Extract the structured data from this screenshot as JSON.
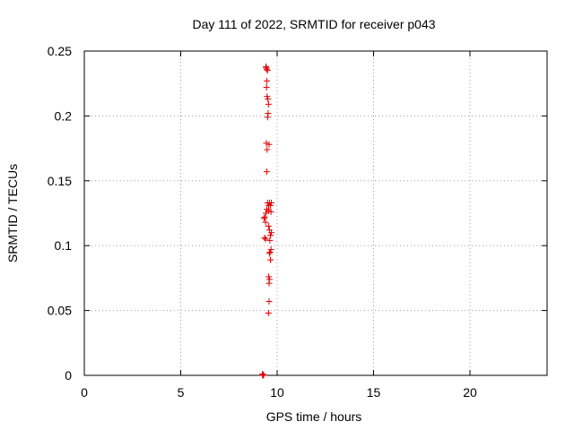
{
  "chart_data": {
    "type": "scatter",
    "title": "Day 111 of 2022, SRMTID for receiver p043",
    "xlabel": "GPS time / hours",
    "ylabel": "SRMTID / TECUs",
    "xlim": [
      0,
      24
    ],
    "ylim": [
      0,
      0.25
    ],
    "xticks": [
      0,
      5,
      10,
      15,
      20
    ],
    "yticks": [
      0,
      0.05,
      0.1,
      0.15,
      0.2,
      0.25
    ],
    "xtick_labels": [
      "0",
      "5",
      "10",
      "15",
      "20"
    ],
    "ytick_labels": [
      "0",
      "0.05",
      "0.1",
      "0.15",
      "0.2",
      "0.25"
    ],
    "grid": true,
    "marker": "+",
    "color": "#e00000",
    "points": [
      {
        "x": 9.42,
        "y": 0.238
      },
      {
        "x": 9.46,
        "y": 0.236
      },
      {
        "x": 9.5,
        "y": 0.235
      },
      {
        "x": 9.44,
        "y": 0.237
      },
      {
        "x": 9.47,
        "y": 0.227
      },
      {
        "x": 9.45,
        "y": 0.222
      },
      {
        "x": 9.48,
        "y": 0.215
      },
      {
        "x": 9.52,
        "y": 0.213
      },
      {
        "x": 9.55,
        "y": 0.209
      },
      {
        "x": 9.53,
        "y": 0.202
      },
      {
        "x": 9.5,
        "y": 0.199
      },
      {
        "x": 9.44,
        "y": 0.179
      },
      {
        "x": 9.58,
        "y": 0.178
      },
      {
        "x": 9.48,
        "y": 0.174
      },
      {
        "x": 9.46,
        "y": 0.157
      },
      {
        "x": 9.5,
        "y": 0.133
      },
      {
        "x": 9.6,
        "y": 0.133
      },
      {
        "x": 9.7,
        "y": 0.133
      },
      {
        "x": 9.56,
        "y": 0.131
      },
      {
        "x": 9.65,
        "y": 0.131
      },
      {
        "x": 9.47,
        "y": 0.128
      },
      {
        "x": 9.55,
        "y": 0.127
      },
      {
        "x": 9.68,
        "y": 0.126
      },
      {
        "x": 9.42,
        "y": 0.125
      },
      {
        "x": 9.35,
        "y": 0.122
      },
      {
        "x": 9.32,
        "y": 0.121
      },
      {
        "x": 9.4,
        "y": 0.118
      },
      {
        "x": 9.55,
        "y": 0.115
      },
      {
        "x": 9.6,
        "y": 0.112
      },
      {
        "x": 9.7,
        "y": 0.11
      },
      {
        "x": 9.65,
        "y": 0.108
      },
      {
        "x": 9.35,
        "y": 0.106
      },
      {
        "x": 9.4,
        "y": 0.105
      },
      {
        "x": 9.62,
        "y": 0.104
      },
      {
        "x": 9.68,
        "y": 0.097
      },
      {
        "x": 9.63,
        "y": 0.095
      },
      {
        "x": 9.6,
        "y": 0.094
      },
      {
        "x": 9.65,
        "y": 0.089
      },
      {
        "x": 9.56,
        "y": 0.076
      },
      {
        "x": 9.6,
        "y": 0.074
      },
      {
        "x": 9.58,
        "y": 0.071
      },
      {
        "x": 9.58,
        "y": 0.057
      },
      {
        "x": 9.55,
        "y": 0.048
      },
      {
        "x": 9.24,
        "y": 0.001
      },
      {
        "x": 9.27,
        "y": 0.0005
      },
      {
        "x": 9.3,
        "y": 0.0
      },
      {
        "x": 9.25,
        "y": 0.0
      }
    ]
  }
}
